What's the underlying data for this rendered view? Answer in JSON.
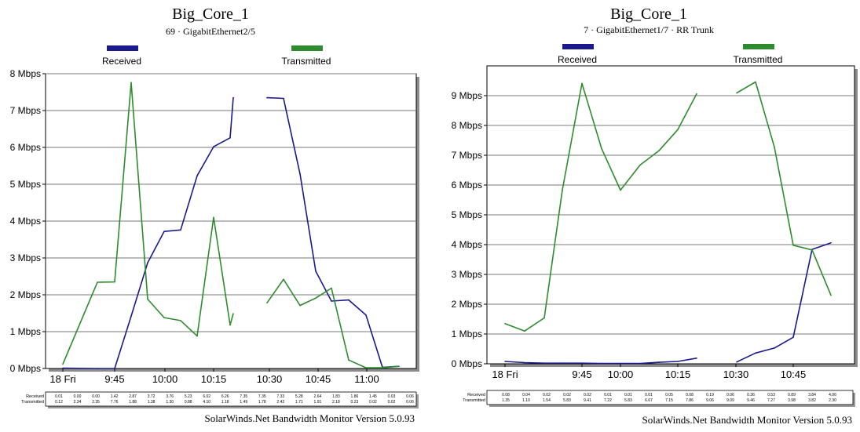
{
  "chart_data": [
    {
      "type": "line",
      "title": "Big_Core_1",
      "subtitle": "69 · GigabitEthernet2/5",
      "footer": "SolarWinds.Net Bandwidth Monitor Version 5.0.93",
      "y_unit": "Mbps",
      "ylim": [
        0,
        8
      ],
      "y_ticks": [
        "0 Mbps",
        "1 Mbps",
        "2 Mbps",
        "3 Mbps",
        "4 Mbps",
        "5 Mbps",
        "6 Mbps",
        "7 Mbps",
        "8 Mbps"
      ],
      "x_ticks": [
        "18 Fri",
        "9:45",
        "10:00",
        "10:15",
        "10:30",
        "10:45",
        "11:00"
      ],
      "grid": true,
      "colors": {
        "received": "#1a1a8c",
        "transmitted": "#2e8b2e"
      },
      "series": [
        {
          "name": "Received",
          "values": [
            0.01,
            0.0,
            0.0,
            1.42,
            2.87,
            3.72,
            3.76,
            5.23,
            6.02,
            6.26,
            7.35,
            null,
            7.35,
            7.33,
            5.28,
            2.64,
            1.83,
            1.86,
            1.45,
            0.03,
            0.06
          ]
        },
        {
          "name": "Transmitted",
          "values": [
            0.12,
            2.34,
            2.35,
            7.76,
            1.88,
            1.38,
            1.3,
            0.88,
            4.1,
            1.18,
            1.49,
            null,
            1.78,
            2.42,
            1.71,
            1.91,
            2.18,
            0.23,
            0.02,
            0.02,
            0.06
          ]
        }
      ],
      "table": {
        "row_labels": [
          "Received",
          "Transmitted"
        ],
        "rows": [
          [
            "0.01",
            "0.00",
            "0.00",
            "1.42",
            "2.87",
            "3.72",
            "3.76",
            "5.23",
            "6.02",
            "6.26",
            "7.35",
            "7.35",
            "7.33",
            "5.28",
            "2.64",
            "1.83",
            "1.86",
            "1.45",
            "0.03",
            "0.06"
          ],
          [
            "0.12",
            "2.34",
            "2.35",
            "7.76",
            "1.88",
            "1.38",
            "1.30",
            "0.88",
            "4.10",
            "1.18",
            "1.49",
            "1.78",
            "2.42",
            "1.71",
            "1.91",
            "2.18",
            "0.23",
            "0.02",
            "0.02",
            "0.06"
          ]
        ]
      }
    },
    {
      "type": "line",
      "title": "Big_Core_1",
      "subtitle": "7 · GigabitEthernet1/7 · RR Trunk",
      "footer": "SolarWinds.Net Bandwidth Monitor Version 5.0.93",
      "y_unit": "Mbps",
      "ylim": [
        0,
        10
      ],
      "y_ticks": [
        "0 Mbps",
        "1 Mbps",
        "2 Mbps",
        "3 Mbps",
        "4 Mbps",
        "5 Mbps",
        "6 Mbps",
        "7 Mbps",
        "8 Mbps",
        "9 Mbps"
      ],
      "x_ticks": [
        "18 Fri",
        "9:45",
        "10:00",
        "10:15",
        "10:30",
        "10:45"
      ],
      "grid": true,
      "colors": {
        "received": "#1a1a8c",
        "transmitted": "#2e8b2e"
      },
      "series": [
        {
          "name": "Received",
          "values": [
            0.08,
            0.04,
            0.02,
            0.02,
            0.02,
            0.01,
            0.01,
            0.01,
            0.05,
            0.08,
            0.19,
            null,
            0.06,
            0.36,
            0.53,
            0.89,
            3.84,
            4.06
          ]
        },
        {
          "name": "Transmitted",
          "values": [
            1.35,
            1.1,
            1.54,
            5.83,
            9.41,
            7.22,
            5.83,
            6.67,
            7.15,
            7.86,
            9.06,
            null,
            9.09,
            9.46,
            7.27,
            3.98,
            3.82,
            2.3
          ]
        }
      ],
      "table": {
        "row_labels": [
          "Received",
          "Transmitted"
        ],
        "rows": [
          [
            "0.08",
            "0.04",
            "0.02",
            "0.02",
            "0.02",
            "0.01",
            "0.01",
            "0.01",
            "0.05",
            "0.08",
            "0.19",
            "0.06",
            "0.36",
            "0.53",
            "0.89",
            "3.84",
            "4.06"
          ],
          [
            "1.35",
            "1.10",
            "1.54",
            "5.83",
            "9.41",
            "7.22",
            "5.83",
            "6.67",
            "7.15",
            "7.86",
            "9.06",
            "9.09",
            "9.46",
            "7.27",
            "3.98",
            "3.82",
            "2.30"
          ]
        ]
      }
    }
  ]
}
